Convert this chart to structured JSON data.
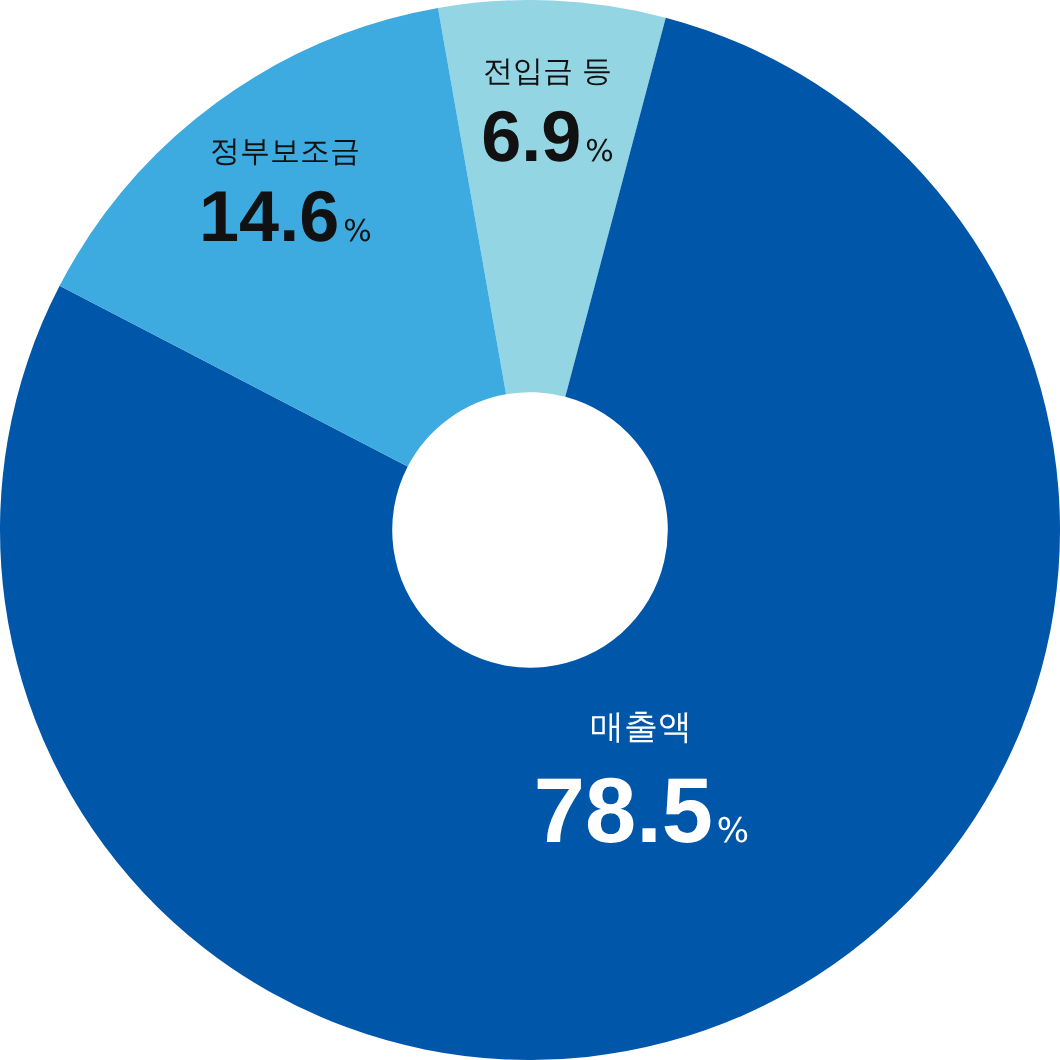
{
  "chart_data": {
    "type": "donut",
    "categories": [
      "전입금 등",
      "매출액",
      "정부보조금"
    ],
    "values": [
      6.9,
      78.5,
      14.6
    ],
    "colors": [
      "#93d5e3",
      "#0057a9",
      "#3daae0"
    ],
    "value_labels": [
      "6.9%",
      "78.5%",
      "14.6%"
    ],
    "legend": false
  }
}
